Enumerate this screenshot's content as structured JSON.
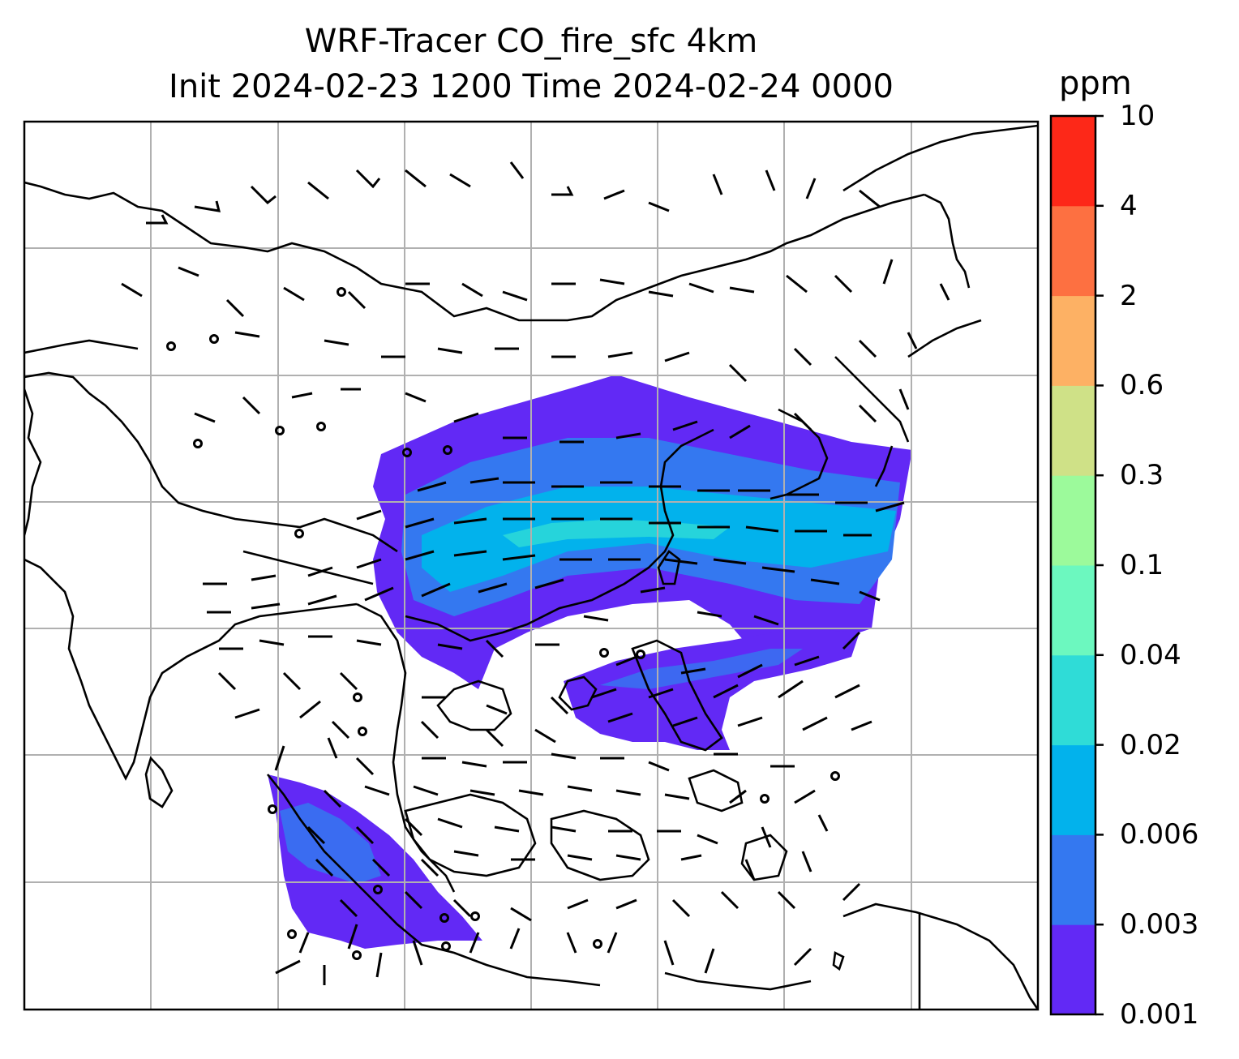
{
  "title": {
    "line1": "WRF-Tracer CO_fire_sfc 4km",
    "line2": "Init 2024-02-23 1200 Time 2024-02-24 0000"
  },
  "colorbar": {
    "unit": "ppm",
    "levels": [
      "0.001",
      "0.003",
      "0.006",
      "0.02",
      "0.04",
      "0.1",
      "0.3",
      "0.6",
      "2",
      "4",
      "10"
    ],
    "colors": [
      "#6229f5",
      "#3478f0",
      "#02b2ec",
      "#2fdcd7",
      "#6cf8bf",
      "#9cfa9b",
      "#cfe187",
      "#fdb164",
      "#fd7041",
      "#fd2818"
    ]
  },
  "map": {
    "field": "CO_fire_sfc",
    "resolution": "4km",
    "gridlines": true,
    "wind_barbs": true,
    "coastlines": true
  }
}
